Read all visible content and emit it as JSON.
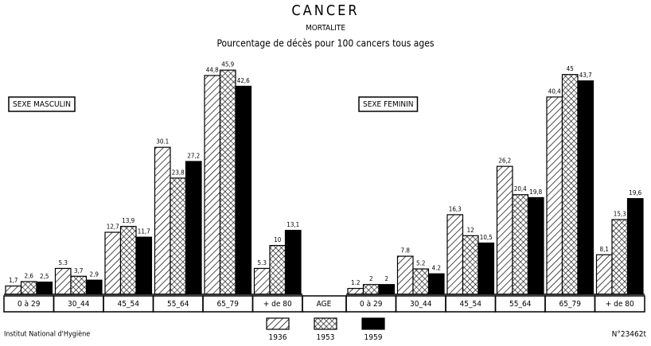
{
  "header": {
    "title": "CANCER",
    "subtitle": "MORTALITE",
    "caption": "Pourcentage de décès pour 100 cancers tous ages"
  },
  "axis_label": "AGE",
  "footer": {
    "source": "Institut National d'Hygiène",
    "number": "N°23462t"
  },
  "chart_data": [
    {
      "type": "bar",
      "title": "SEXE MASCULIN",
      "categories": [
        "0 à 29",
        "30_44",
        "45_54",
        "55_64",
        "65_79",
        "+ de 80"
      ],
      "ylim": [
        0,
        50
      ],
      "series": [
        {
          "name": "1936",
          "color": "#000000",
          "pattern": "hatch",
          "values": [
            1.7,
            5.3,
            12.7,
            30.1,
            44.8,
            5.3
          ],
          "value_labels": [
            "1,7",
            "5.3",
            "12,7",
            "30.1",
            "44,8",
            "5.3"
          ]
        },
        {
          "name": "1953",
          "color": "#000000",
          "pattern": "crosshatch",
          "values": [
            2.6,
            3.7,
            13.9,
            23.8,
            45.9,
            10
          ],
          "value_labels": [
            "2,6",
            "3,7",
            "13,9",
            "23,8",
            "45,9",
            "10"
          ]
        },
        {
          "name": "1959",
          "color": "#000000",
          "pattern": "solid",
          "values": [
            2.5,
            2.9,
            11.7,
            27.2,
            42.6,
            13.1
          ],
          "value_labels": [
            "2,5",
            "2,9",
            "11,7",
            "27,2",
            "42,6",
            "13,1"
          ]
        }
      ]
    },
    {
      "type": "bar",
      "title": "SEXE FEMININ",
      "categories": [
        "0 à 29",
        "30_44",
        "45_54",
        "55_64",
        "65_79",
        "+ de 80"
      ],
      "ylim": [
        0,
        50
      ],
      "series": [
        {
          "name": "1936",
          "color": "#000000",
          "pattern": "hatch",
          "values": [
            1.2,
            7.8,
            16.3,
            26.2,
            40.4,
            8.1
          ],
          "value_labels": [
            "1.2",
            "7.8",
            "16,3",
            "26,2",
            "40,4",
            "8,1"
          ]
        },
        {
          "name": "1953",
          "color": "#000000",
          "pattern": "crosshatch",
          "values": [
            2,
            5.2,
            12,
            20.4,
            45,
            15.3
          ],
          "value_labels": [
            "2",
            "5.2",
            "12",
            "20,4",
            "45",
            "15,3"
          ]
        },
        {
          "name": "1959",
          "color": "#000000",
          "pattern": "solid",
          "values": [
            2,
            4.2,
            10.5,
            19.8,
            43.7,
            19.6
          ],
          "value_labels": [
            "2",
            "4.2",
            "10,5",
            "19,8",
            "43,7",
            "19,6"
          ]
        }
      ]
    }
  ]
}
